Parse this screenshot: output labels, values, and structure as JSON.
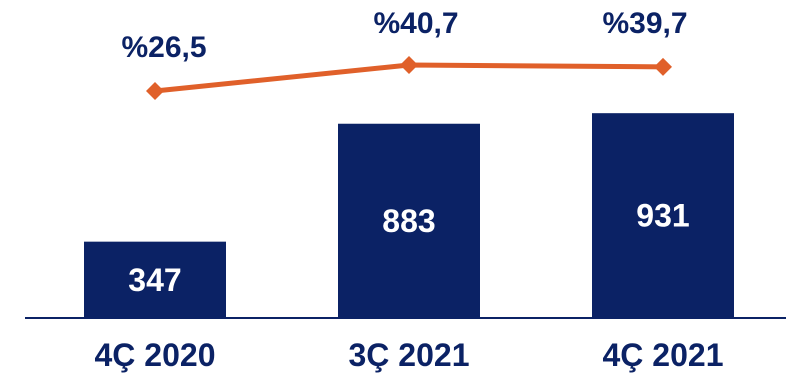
{
  "chart_data": {
    "type": "bar",
    "categories": [
      "4Ç 2020",
      "3Ç 2021",
      "4Ç 2021"
    ],
    "series": [
      {
        "type": "bar",
        "values": [
          347,
          883,
          931
        ],
        "value_labels": [
          "347",
          "883",
          "931"
        ],
        "color": "#0b2265"
      },
      {
        "type": "line",
        "values": [
          26.5,
          40.7,
          39.7
        ],
        "value_labels": [
          "%26,5",
          "%40,7",
          "%39,7"
        ],
        "color": "#e0602a"
      }
    ],
    "grid": false,
    "legend": "none"
  }
}
